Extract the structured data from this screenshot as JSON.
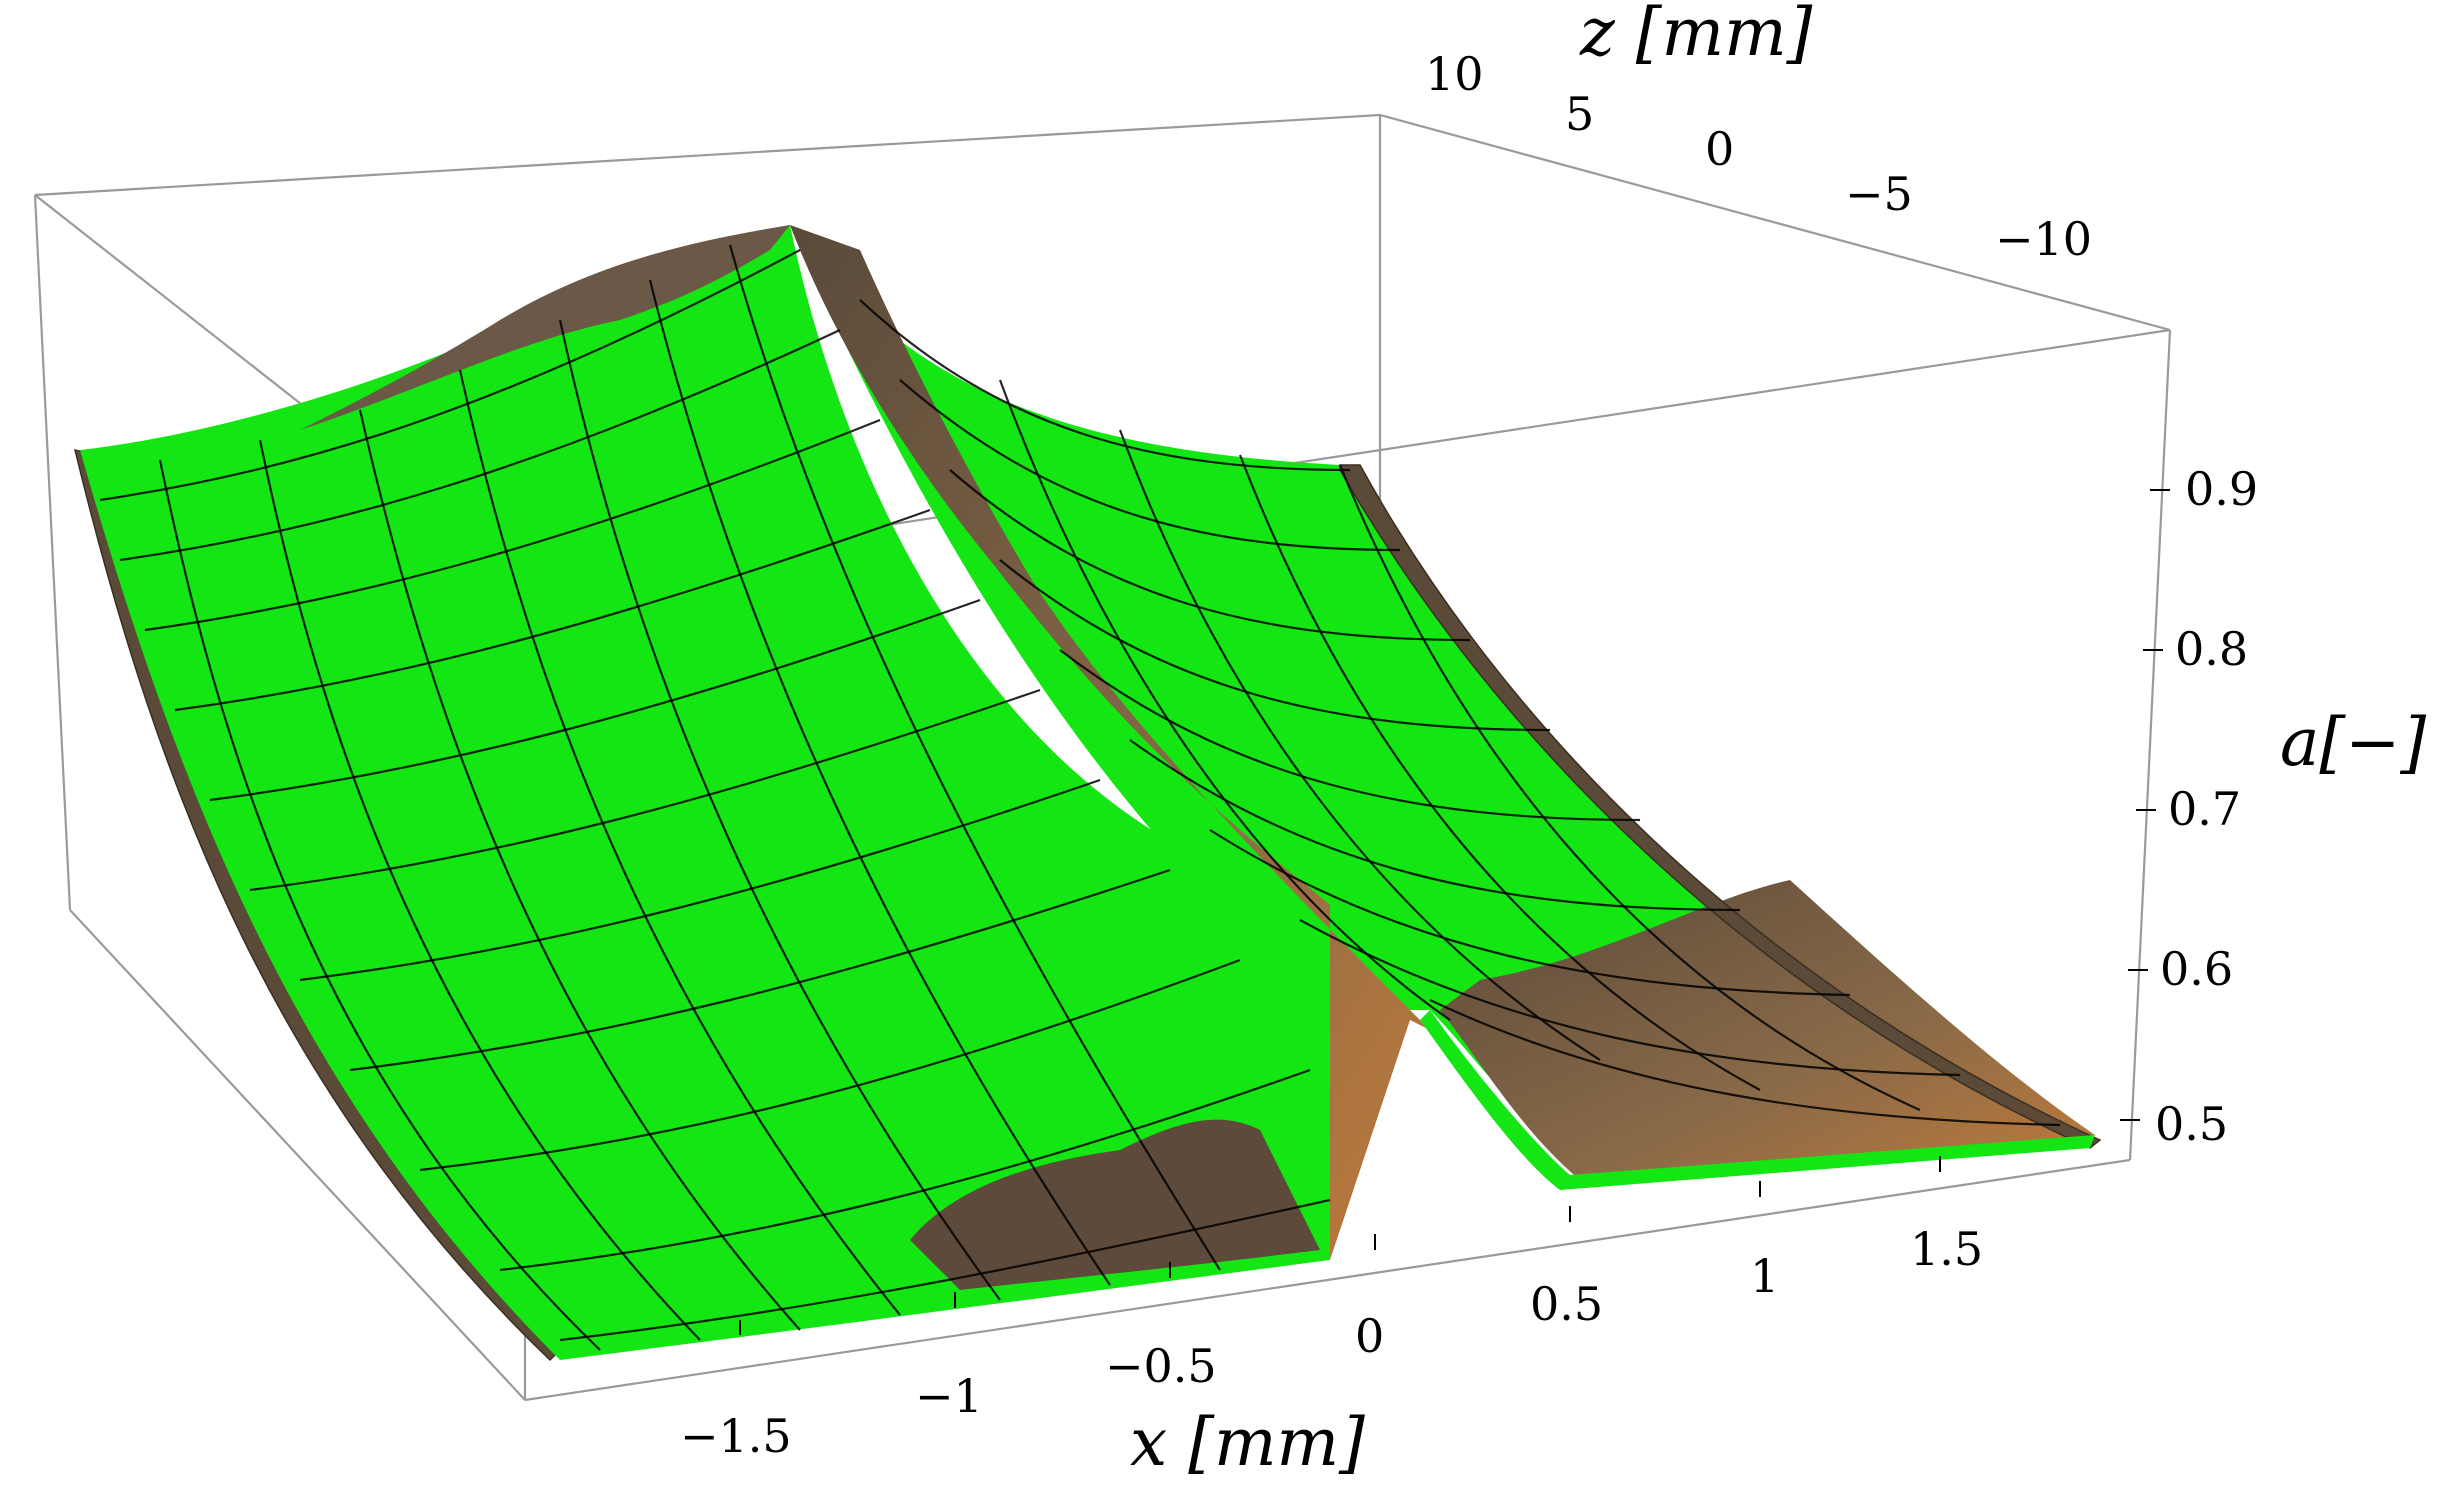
{
  "chart_data": {
    "type": "surface3d",
    "title": "",
    "axes": {
      "x": {
        "label": "x [mm]",
        "ticks": [
          "−1.5",
          "−1",
          "−0.5",
          "0",
          "0.5",
          "1",
          "1.5"
        ],
        "range": [
          -1.9,
          1.9
        ]
      },
      "z": {
        "label": "z [mm]",
        "ticks": [
          "10",
          "5",
          "0",
          "−5",
          "−10"
        ],
        "range": [
          12,
          -12
        ]
      },
      "a": {
        "label": "a[−]",
        "ticks": [
          "0.5",
          "0.6",
          "0.7",
          "0.8",
          "0.9"
        ],
        "range": [
          0.48,
          1.0
        ]
      }
    },
    "surface": {
      "description_values": {
        "x_samples": [
          -1.9,
          -1.5,
          -1.0,
          -0.5,
          -0.1,
          0.0,
          0.1,
          0.5,
          1.0,
          1.5,
          1.9
        ],
        "a_at_z_min": [
          0.9,
          0.93,
          0.95,
          0.97,
          1.0,
          0.98,
          0.95,
          0.92,
          0.9,
          0.88,
          0.87
        ],
        "a_at_z_max": [
          0.49,
          0.5,
          0.52,
          0.54,
          0.58,
          0.55,
          0.53,
          0.51,
          0.5,
          0.49,
          0.48
        ]
      },
      "colors": {
        "primary": "#14e614",
        "secondary": "#7a5a3c",
        "mesh": "#000000"
      }
    },
    "grid": false,
    "legend": "none"
  }
}
